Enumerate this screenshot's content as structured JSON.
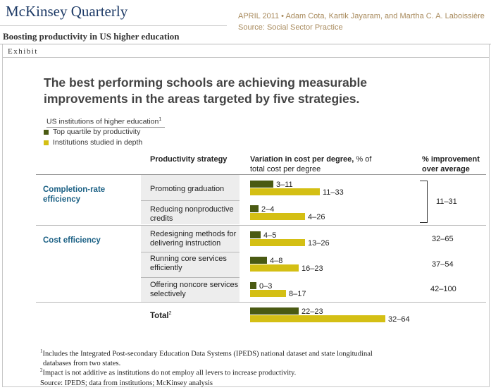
{
  "header": {
    "brand": "McKinsey Quarterly",
    "meta_line1": "APRIL 2011 • Adam Cota, Kartik Jayaram, and Martha C. A. Laboissière",
    "meta_line2": "Source: Social Sector Practice",
    "article_title": "Boosting productivity in US higher education"
  },
  "exhibit": {
    "label": "Exhibit",
    "headline_line1": "The best performing schools are achieving measurable",
    "headline_line2": "improvements in the areas targeted by five strategies."
  },
  "legend": {
    "title": "US institutions of higher education",
    "title_marker": "1",
    "items": [
      {
        "label": "Top quartile by productivity",
        "color": "#4a5a12"
      },
      {
        "label": "Institutions studied in depth",
        "color": "#d4bf14"
      }
    ]
  },
  "columns": {
    "strategy": "Productivity strategy",
    "variation_bold": "Variation in cost per degree,",
    "variation_rest": " % of",
    "variation_line2": "total cost per degree",
    "improvement_line1": "% improvement",
    "improvement_line2": "over average"
  },
  "groups": {
    "completion_line1": "Completion-rate",
    "completion_line2": "efficiency",
    "cost": "Cost efficiency"
  },
  "improvements": {
    "completion": "11–31",
    "redesigning": "32–65",
    "running": "37–54",
    "offering": "42–100"
  },
  "total": {
    "label": "Total",
    "marker": "2"
  },
  "chart_data": {
    "type": "bar",
    "orientation": "horizontal",
    "categories": [
      "Promoting graduation",
      "Reducing nonproductive credits",
      "Redesigning methods for delivering instruction",
      "Running core services efficiently",
      "Offering noncore services selectively",
      "Total"
    ],
    "series": [
      {
        "name": "Top quartile by productivity",
        "color": "#4a5a12",
        "values": [
          11,
          4,
          5,
          8,
          3,
          23
        ],
        "labels": [
          "3–11",
          "2–4",
          "4–5",
          "4–8",
          "0–3",
          "22–23"
        ]
      },
      {
        "name": "Institutions studied in depth",
        "color": "#d4bf14",
        "values": [
          33,
          26,
          26,
          23,
          17,
          64
        ],
        "labels": [
          "11–33",
          "4–26",
          "13–26",
          "16–23",
          "8–17",
          "32–64"
        ]
      }
    ],
    "xlim": [
      0,
      64
    ],
    "grid": false
  },
  "strategy_lines": [
    [
      "Promoting graduation"
    ],
    [
      "Reducing nonproductive",
      "credits"
    ],
    [
      "Redesigning methods for",
      "delivering instruction"
    ],
    [
      "Running core services",
      "efficiently"
    ],
    [
      "Offering noncore services",
      "selectively"
    ]
  ],
  "footnotes": {
    "f1_marker": "1",
    "f1_line1": "Includes the Integrated Post-secondary Education Data Systems (IPEDS) national dataset and state longitudinal",
    "f1_line2": "databases from two states.",
    "f2_marker": "2",
    "f2_text": "Impact is not additive as institutions do not employ all levers to increase productivity.",
    "source": "Source: IPEDS; data from institutions; McKinsey analysis"
  }
}
